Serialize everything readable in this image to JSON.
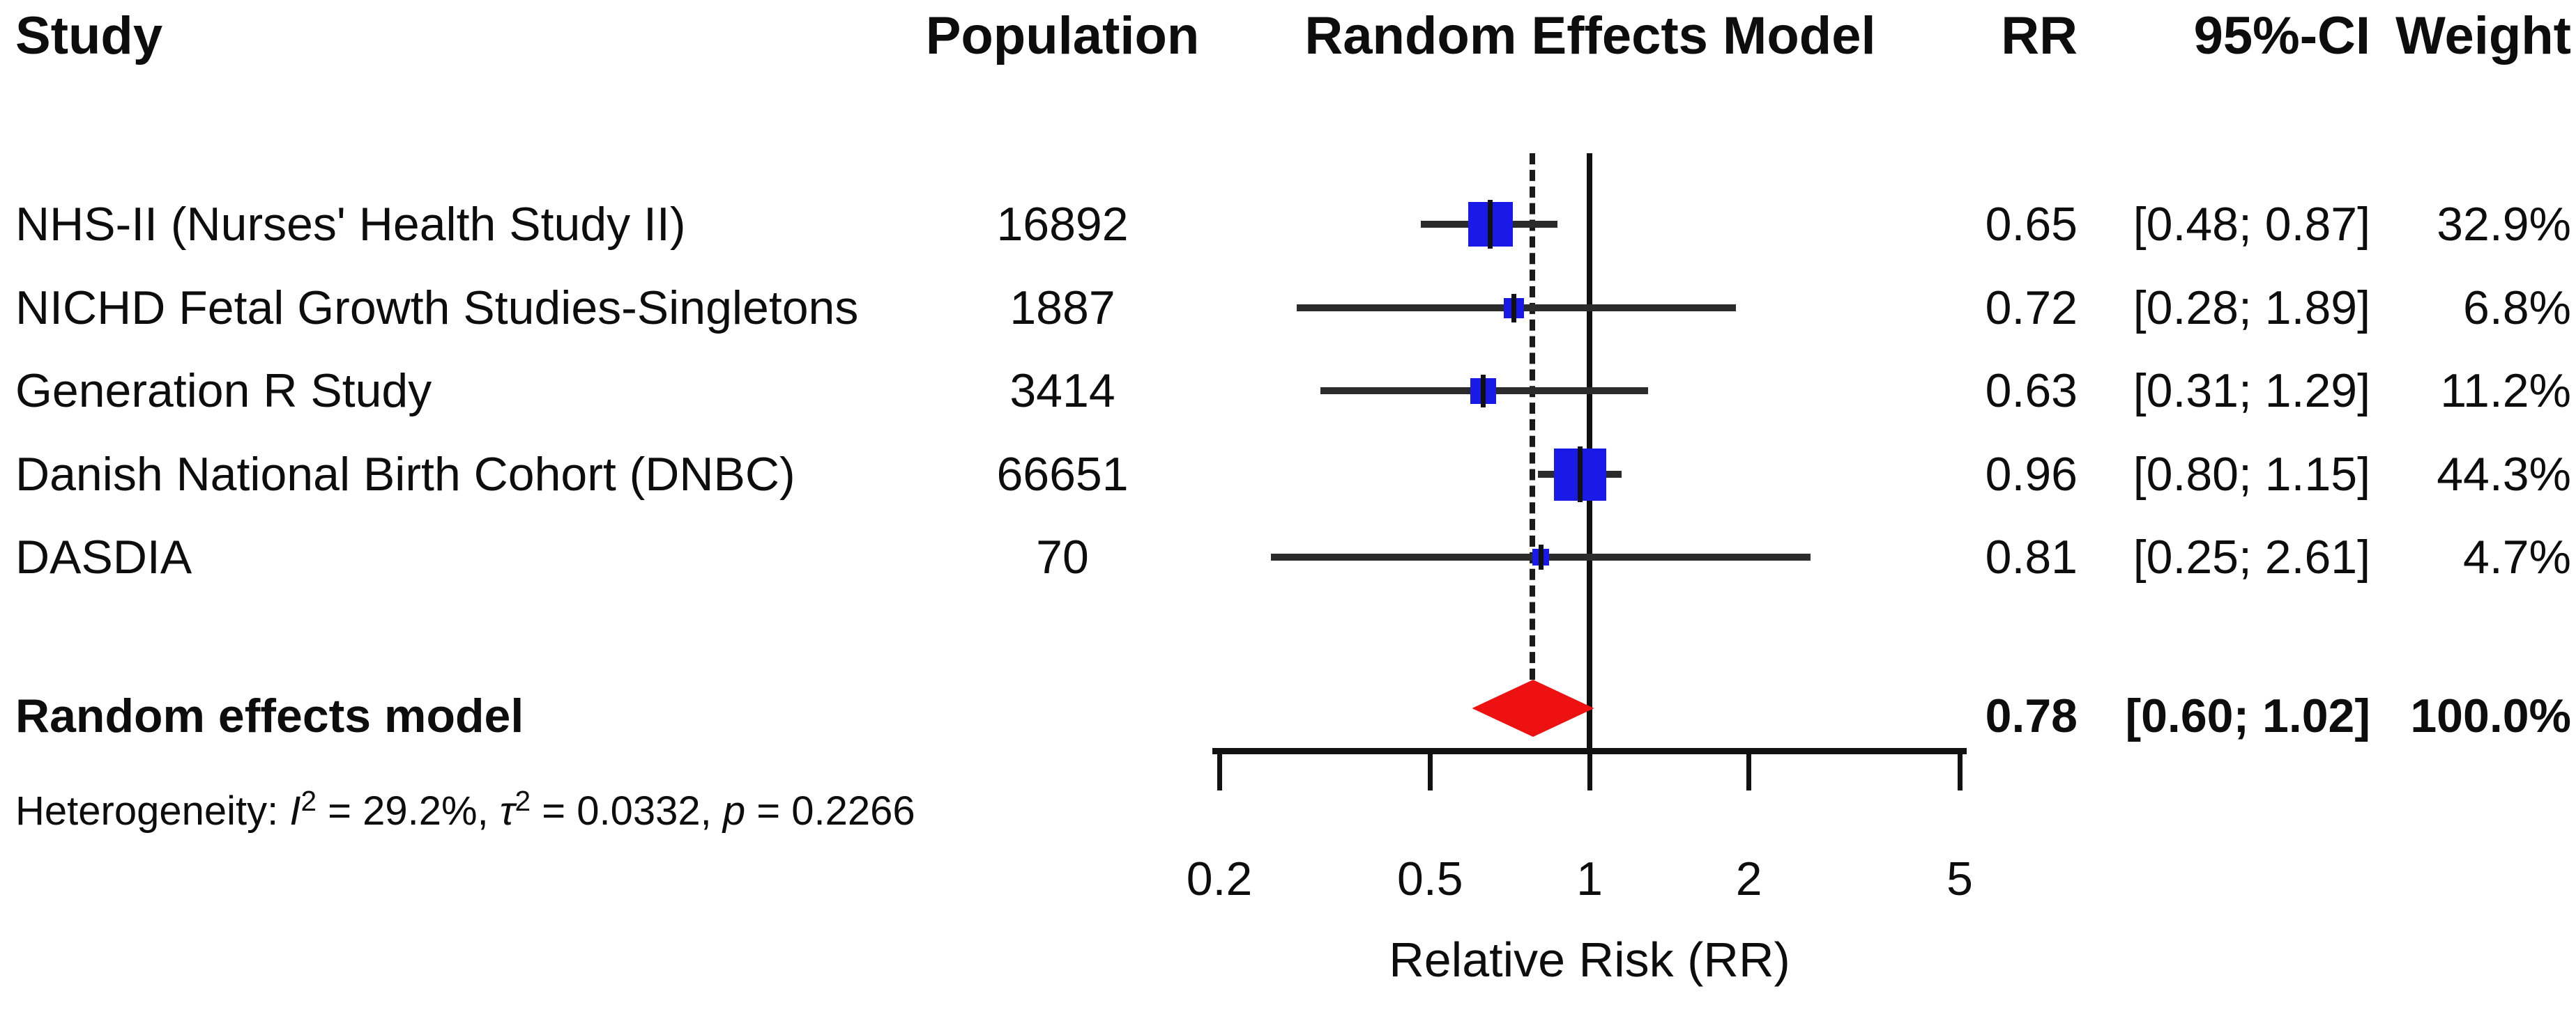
{
  "header": {
    "study": "Study",
    "population": "Population",
    "model": "Random Effects Model",
    "rr": "RR",
    "ci": "95%-CI",
    "weight": "Weight"
  },
  "chart_data": {
    "type": "scatter",
    "subtype": "forest-plot",
    "title": "Random Effects Model",
    "xlabel": "Relative Risk (RR)",
    "x_scale": "log10",
    "xlim": [
      0.2,
      5
    ],
    "x_ticks": [
      0.2,
      0.5,
      1,
      2,
      5
    ],
    "x_tick_labels": [
      "0.2",
      "0.5",
      "1",
      "2",
      "5"
    ],
    "reference_line": 1,
    "dashed_line": 0.78,
    "grid": false,
    "colors": {
      "square": "#1a1ae8",
      "diamond": "#ee1111",
      "ci_line": "#2b2b2b",
      "axis": "#111111"
    },
    "studies": [
      {
        "name": "NHS-II (Nurses' Health Study II)",
        "population": "16892",
        "rr": 0.65,
        "ci": [
          0.48,
          0.87
        ],
        "weight_pct": 32.9,
        "rr_label": "0.65",
        "ci_label": "[0.48; 0.87]",
        "weight_label": "32.9%"
      },
      {
        "name": "NICHD Fetal Growth Studies-Singletons",
        "population": "1887",
        "rr": 0.72,
        "ci": [
          0.28,
          1.89
        ],
        "weight_pct": 6.8,
        "rr_label": "0.72",
        "ci_label": "[0.28; 1.89]",
        "weight_label": "6.8%"
      },
      {
        "name": "Generation R Study",
        "population": "3414",
        "rr": 0.63,
        "ci": [
          0.31,
          1.29
        ],
        "weight_pct": 11.2,
        "rr_label": "0.63",
        "ci_label": "[0.31; 1.29]",
        "weight_label": "11.2%"
      },
      {
        "name": "Danish National Birth Cohort (DNBC)",
        "population": "66651",
        "rr": 0.96,
        "ci": [
          0.8,
          1.15
        ],
        "weight_pct": 44.3,
        "rr_label": "0.96",
        "ci_label": "[0.80; 1.15]",
        "weight_label": "44.3%"
      },
      {
        "name": "DASDIA",
        "population": "70",
        "rr": 0.81,
        "ci": [
          0.25,
          2.61
        ],
        "weight_pct": 4.7,
        "rr_label": "0.81",
        "ci_label": "[0.25; 2.61]",
        "weight_label": "4.7%"
      }
    ],
    "summary": {
      "label": "Random effects model",
      "rr": 0.78,
      "ci": [
        0.6,
        1.02
      ],
      "weight_pct": 100.0,
      "rr_label": "0.78",
      "ci_label": "[0.60; 1.02]",
      "weight_label": "100.0%"
    },
    "heterogeneity_parts": [
      {
        "text": "Heterogeneity: ",
        "style": "normal"
      },
      {
        "text": "I",
        "style": "italic"
      },
      {
        "text": "2",
        "style": "sup"
      },
      {
        "text": " = 29.2%, ",
        "style": "normal"
      },
      {
        "text": "τ",
        "style": "italic"
      },
      {
        "text": "2",
        "style": "sup"
      },
      {
        "text": " = 0.0332, ",
        "style": "normal"
      },
      {
        "text": "p",
        "style": "italic"
      },
      {
        "text": " = 0.2266",
        "style": "normal"
      }
    ]
  }
}
